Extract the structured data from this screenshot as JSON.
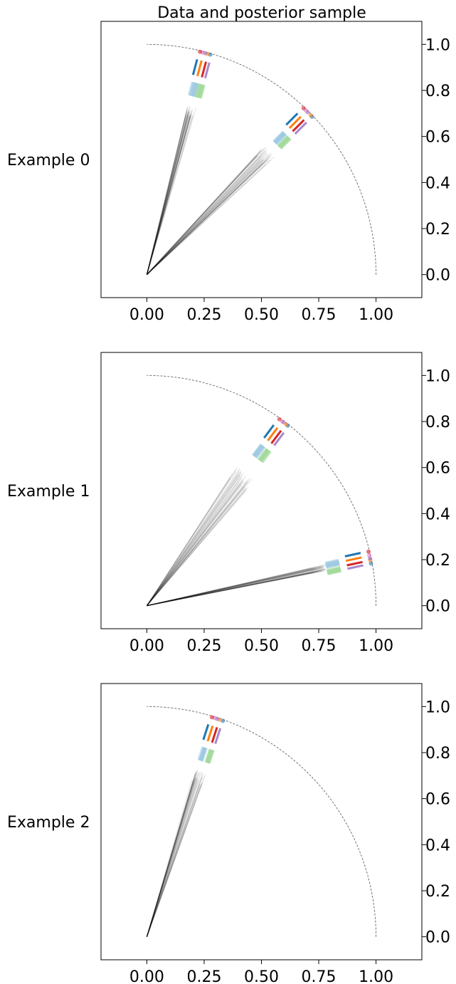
{
  "figure": {
    "title": "Data and posterior sample"
  },
  "chart_data": [
    {
      "type": "line",
      "row_label": "Example 0",
      "xlim": [
        -0.2,
        1.2
      ],
      "ylim": [
        -0.1,
        1.1
      ],
      "x_ticks": [
        "0.00",
        "0.25",
        "0.50",
        "0.75",
        "1.00"
      ],
      "y_ticks": [
        "0.0",
        "0.2",
        "0.4",
        "0.6",
        "0.8",
        "1.0"
      ],
      "y_axis_side": "right",
      "reference_arc": {
        "radius": 1.0,
        "from_deg": 0,
        "to_deg": 90
      },
      "clusters": [
        {
          "angle_deg": 75,
          "ray_spread_deg": 3,
          "ray_length": 0.76,
          "rays": 40
        },
        {
          "angle_deg": 45,
          "ray_spread_deg": 5,
          "ray_length": 0.76,
          "rays": 40
        }
      ],
      "colors": {
        "blue": "#1f77b4",
        "orange": "#ff7f0e",
        "green": "#2ca02c",
        "purple": "#9467bd",
        "pink": "#e377c2",
        "red": "#d62728",
        "light_blue": "#9ecae1",
        "light_green": "#a1d99b"
      }
    },
    {
      "type": "line",
      "row_label": "Example 1",
      "xlim": [
        -0.2,
        1.2
      ],
      "ylim": [
        -0.1,
        1.1
      ],
      "x_ticks": [
        "0.00",
        "0.25",
        "0.50",
        "0.75",
        "1.00"
      ],
      "y_ticks": [
        "0.0",
        "0.2",
        "0.4",
        "0.6",
        "0.8",
        "1.0"
      ],
      "y_axis_side": "right",
      "reference_arc": {
        "radius": 1.0,
        "from_deg": 0,
        "to_deg": 90
      },
      "clusters": [
        {
          "angle_deg": 53,
          "ray_spread_deg": 8,
          "ray_length": 0.72,
          "rays": 40
        },
        {
          "angle_deg": 12,
          "ray_spread_deg": 2,
          "ray_length": 0.8,
          "rays": 40
        }
      ],
      "colors": {
        "blue": "#1f77b4",
        "orange": "#ff7f0e",
        "green": "#2ca02c",
        "purple": "#9467bd",
        "pink": "#e377c2",
        "red": "#d62728",
        "light_blue": "#9ecae1",
        "light_green": "#a1d99b"
      }
    },
    {
      "type": "line",
      "row_label": "Example 2",
      "xlim": [
        -0.2,
        1.2
      ],
      "ylim": [
        -0.1,
        1.1
      ],
      "x_ticks": [
        "0.00",
        "0.25",
        "0.50",
        "0.75",
        "1.00"
      ],
      "y_ticks": [
        "0.0",
        "0.2",
        "0.4",
        "0.6",
        "0.8",
        "1.0"
      ],
      "y_axis_side": "right",
      "reference_arc": {
        "radius": 1.0,
        "from_deg": 0,
        "to_deg": 90
      },
      "clusters": [
        {
          "angle_deg": 72,
          "ray_spread_deg": 4,
          "ray_length": 0.76,
          "rays": 40
        }
      ],
      "colors": {
        "blue": "#1f77b4",
        "orange": "#ff7f0e",
        "green": "#2ca02c",
        "purple": "#9467bd",
        "pink": "#e377c2",
        "red": "#d62728",
        "light_blue": "#9ecae1",
        "light_green": "#a1d99b"
      }
    }
  ]
}
